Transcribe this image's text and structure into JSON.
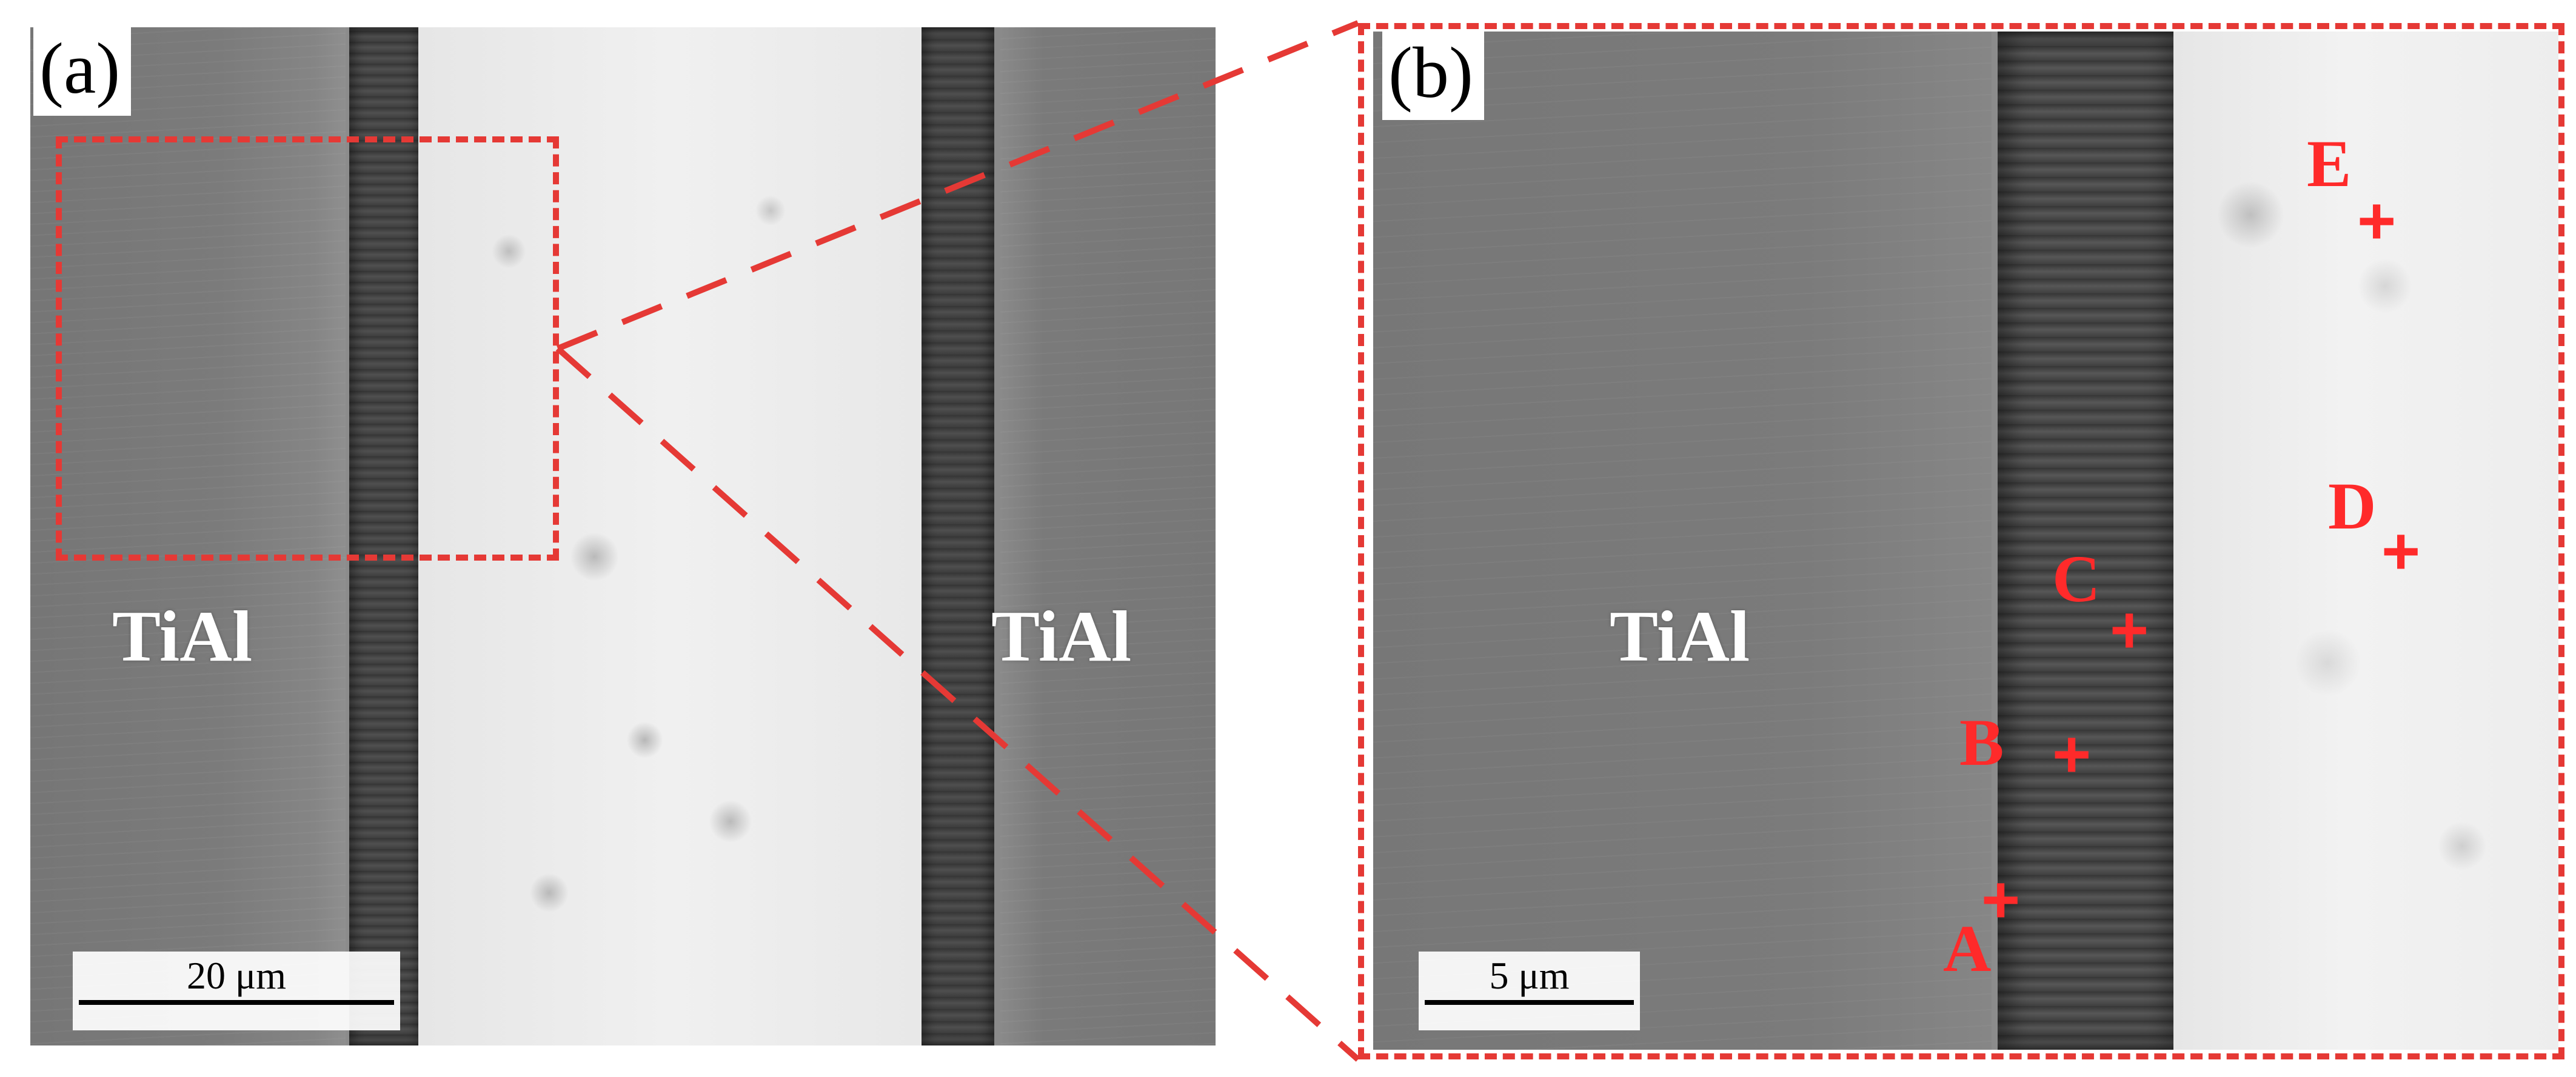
{
  "panels": {
    "a": {
      "label": "(a)",
      "material_labels": [
        "TiAl",
        "TiAl"
      ],
      "scale_bar": "20 μm"
    },
    "b": {
      "label": "(b)",
      "material_label": "TiAl",
      "points": [
        "A",
        "B",
        "C",
        "D",
        "E"
      ],
      "marker": "+",
      "scale_bar": "5 μm"
    }
  },
  "colors": {
    "annotation_red": "#e53935",
    "label_white": "#ffffff"
  }
}
